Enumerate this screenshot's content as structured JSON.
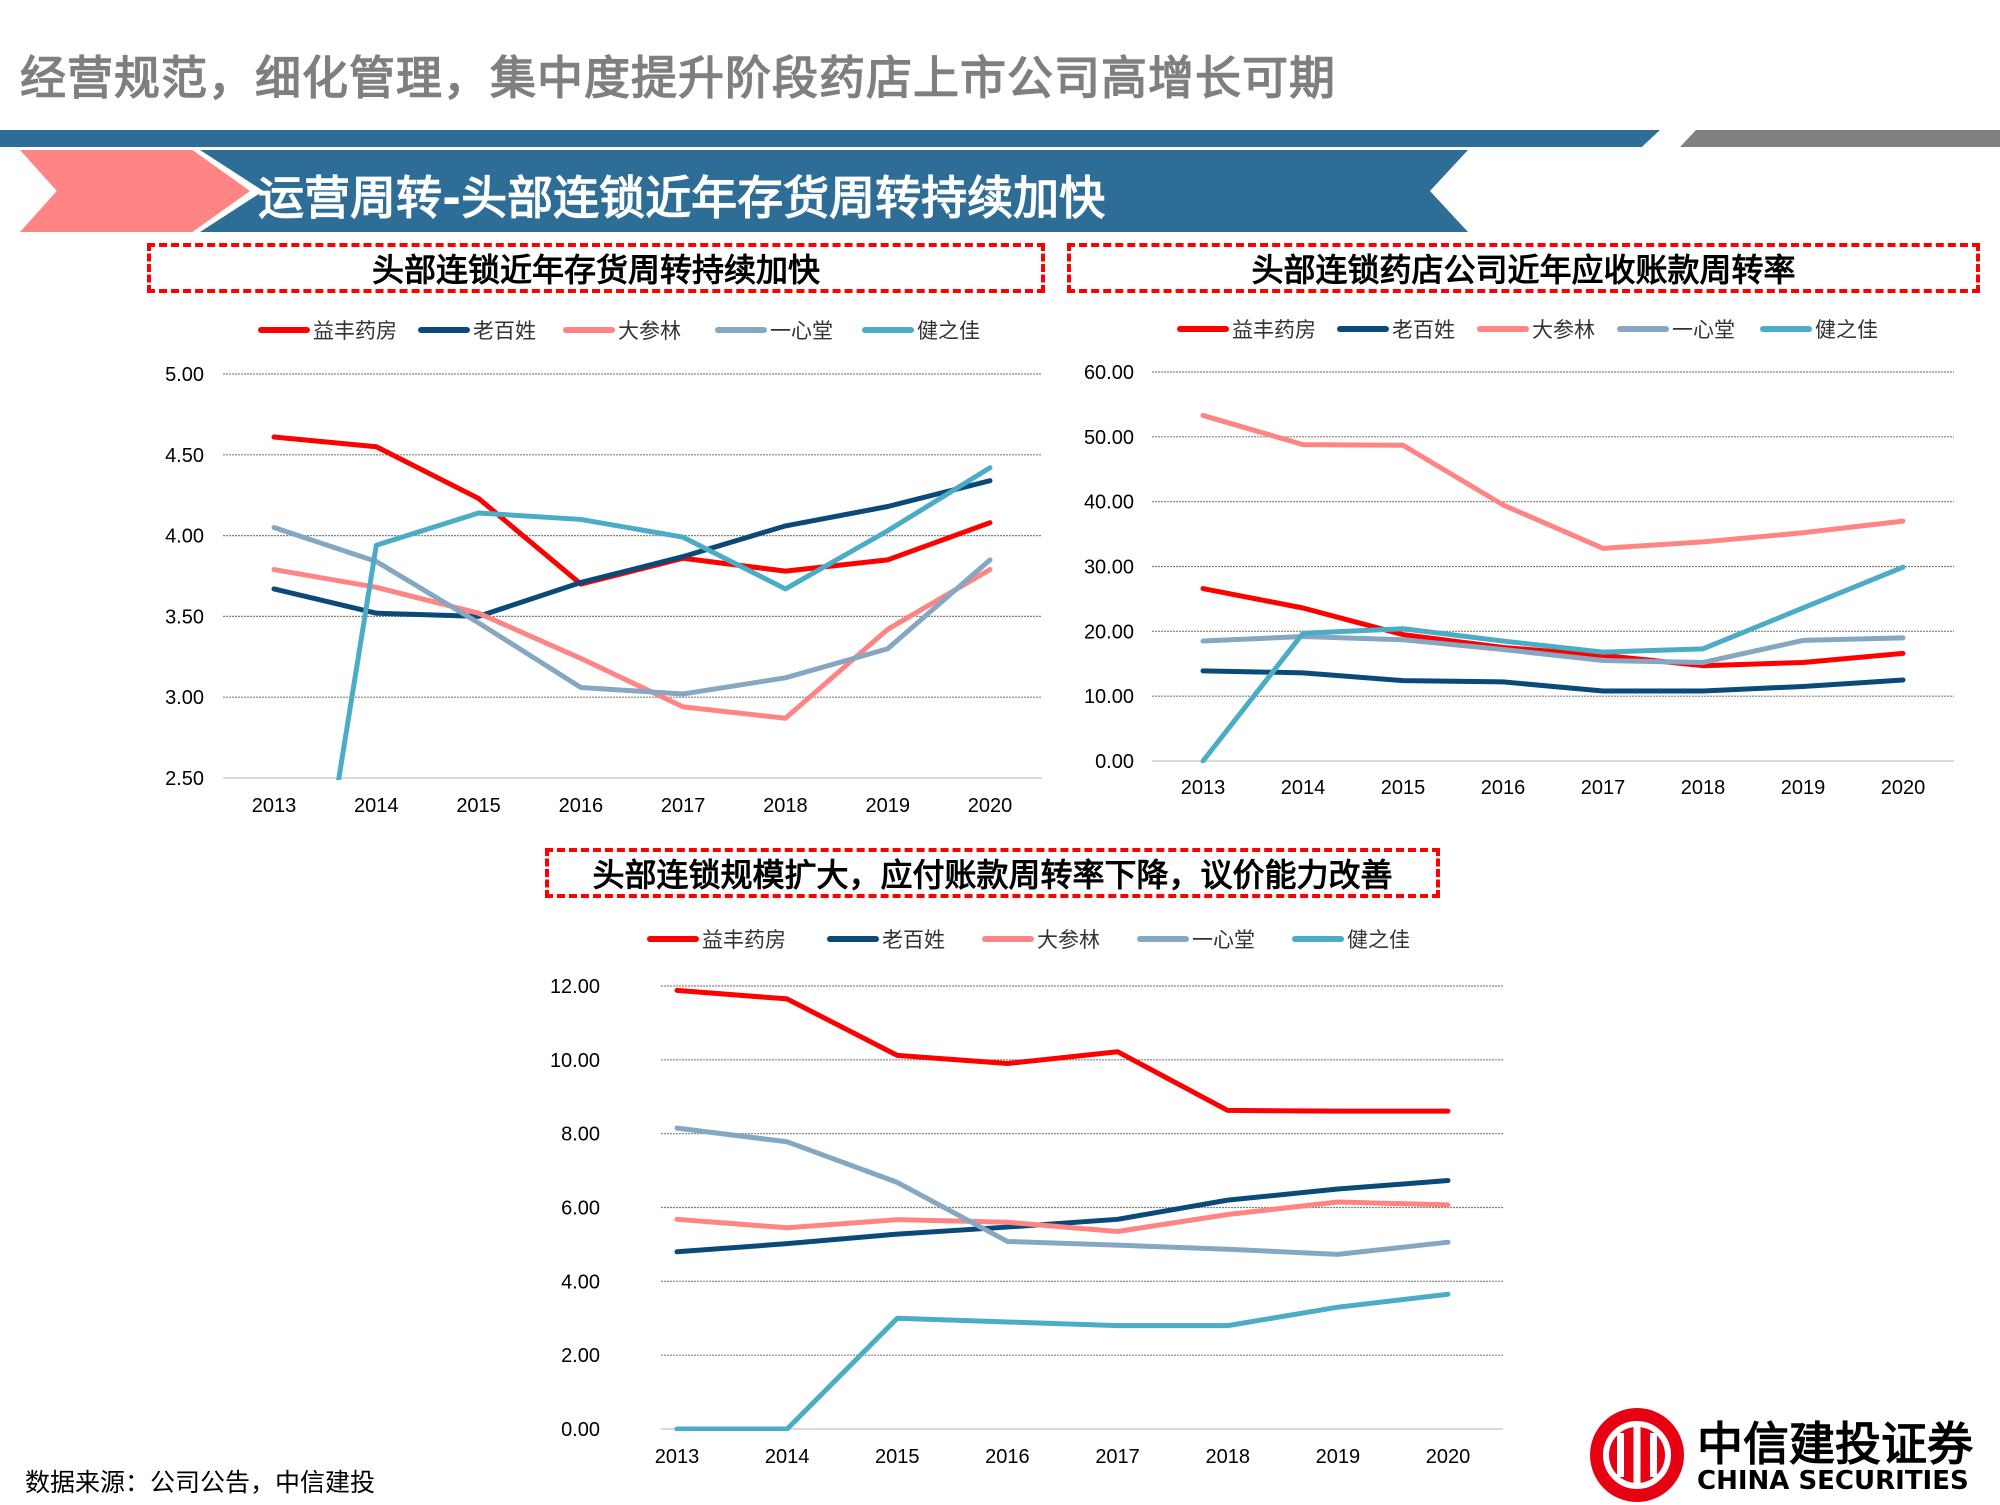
{
  "header": {
    "title": "经营规范，细化管理，集中度提升阶段药店上市公司高增长可期"
  },
  "section": {
    "title": "运营周转-头部连锁近年存货周转持续加快"
  },
  "footer": {
    "source": "数据来源：公司公告，中信建投"
  },
  "logo": {
    "cn": "中信建投证券",
    "en": "CHINA SECURITIES"
  },
  "colors": {
    "益丰药房": "#ff0000",
    "老百姓": "#0b4a78",
    "大参林": "#ff8585",
    "一心堂": "#85a7c2",
    "健之佳": "#4bacc6",
    "banner": "#2e6e96",
    "title_box_border": "#ff0000"
  },
  "chart_data": [
    {
      "type": "line",
      "title": "头部连锁近年存货周转持续加快",
      "categories": [
        "2013",
        "2014",
        "2015",
        "2016",
        "2017",
        "2018",
        "2019",
        "2020"
      ],
      "ylim": [
        2.5,
        5.0
      ],
      "yticks": [
        "2.50",
        "3.00",
        "3.50",
        "4.00",
        "4.50",
        "5.00"
      ],
      "grid": true,
      "legend": "top",
      "series": [
        {
          "name": "益丰药房",
          "values": [
            4.61,
            4.55,
            4.23,
            3.7,
            3.86,
            3.78,
            3.85,
            4.08
          ]
        },
        {
          "name": "老百姓",
          "values": [
            3.67,
            3.52,
            3.5,
            3.71,
            3.87,
            4.06,
            4.18,
            4.34
          ]
        },
        {
          "name": "大参林",
          "values": [
            3.79,
            3.68,
            3.52,
            3.24,
            2.94,
            2.87,
            3.42,
            3.79
          ]
        },
        {
          "name": "一心堂",
          "values": [
            4.05,
            3.84,
            3.46,
            3.06,
            3.02,
            3.12,
            3.3,
            3.85
          ]
        },
        {
          "name": "健之佳",
          "values": [
            0,
            3.94,
            4.14,
            4.1,
            3.99,
            3.67,
            4.03,
            4.42
          ]
        }
      ]
    },
    {
      "type": "line",
      "title": "头部连锁药店公司近年应收账款周转率",
      "categories": [
        "2013",
        "2014",
        "2015",
        "2016",
        "2017",
        "2018",
        "2019",
        "2020"
      ],
      "ylim": [
        0,
        60
      ],
      "yticks": [
        "0.00",
        "10.00",
        "20.00",
        "30.00",
        "40.00",
        "50.00",
        "60.00"
      ],
      "grid": true,
      "legend": "top",
      "series": [
        {
          "name": "益丰药房",
          "values": [
            26.6,
            23.6,
            19.5,
            17.5,
            16.3,
            14.7,
            15.2,
            16.6
          ]
        },
        {
          "name": "老百姓",
          "values": [
            13.9,
            13.6,
            12.4,
            12.2,
            10.8,
            10.8,
            11.5,
            12.5
          ]
        },
        {
          "name": "大参林",
          "values": [
            53.3,
            48.8,
            48.7,
            39.5,
            32.8,
            33.8,
            35.2,
            37.0
          ]
        },
        {
          "name": "一心堂",
          "values": [
            18.5,
            19.2,
            18.7,
            17.2,
            15.5,
            15.2,
            18.6,
            19.0
          ]
        },
        {
          "name": "健之佳",
          "values": [
            0,
            19.7,
            20.4,
            18.5,
            16.8,
            17.3,
            23.6,
            29.9
          ]
        }
      ]
    },
    {
      "type": "line",
      "title": "头部连锁规模扩大，应付账款周转率下降，议价能力改善",
      "categories": [
        "2013",
        "2014",
        "2015",
        "2016",
        "2017",
        "2018",
        "2019",
        "2020"
      ],
      "ylim": [
        0,
        12
      ],
      "yticks": [
        "0.00",
        "2.00",
        "4.00",
        "6.00",
        "8.00",
        "10.00",
        "12.00"
      ],
      "grid": true,
      "legend": "top",
      "series": [
        {
          "name": "益丰药房",
          "values": [
            11.88,
            11.65,
            10.12,
            9.9,
            10.22,
            8.63,
            8.61,
            8.61
          ]
        },
        {
          "name": "老百姓",
          "values": [
            4.8,
            5.02,
            5.28,
            5.47,
            5.68,
            6.2,
            6.5,
            6.73
          ]
        },
        {
          "name": "大参林",
          "values": [
            5.68,
            5.45,
            5.67,
            5.6,
            5.35,
            5.81,
            6.15,
            6.07
          ]
        },
        {
          "name": "一心堂",
          "values": [
            8.15,
            7.78,
            6.68,
            5.08,
            4.98,
            4.87,
            4.73,
            5.06
          ]
        },
        {
          "name": "健之佳",
          "values": [
            0,
            0,
            3.0,
            2.9,
            2.8,
            2.8,
            3.3,
            3.65
          ]
        }
      ]
    }
  ]
}
